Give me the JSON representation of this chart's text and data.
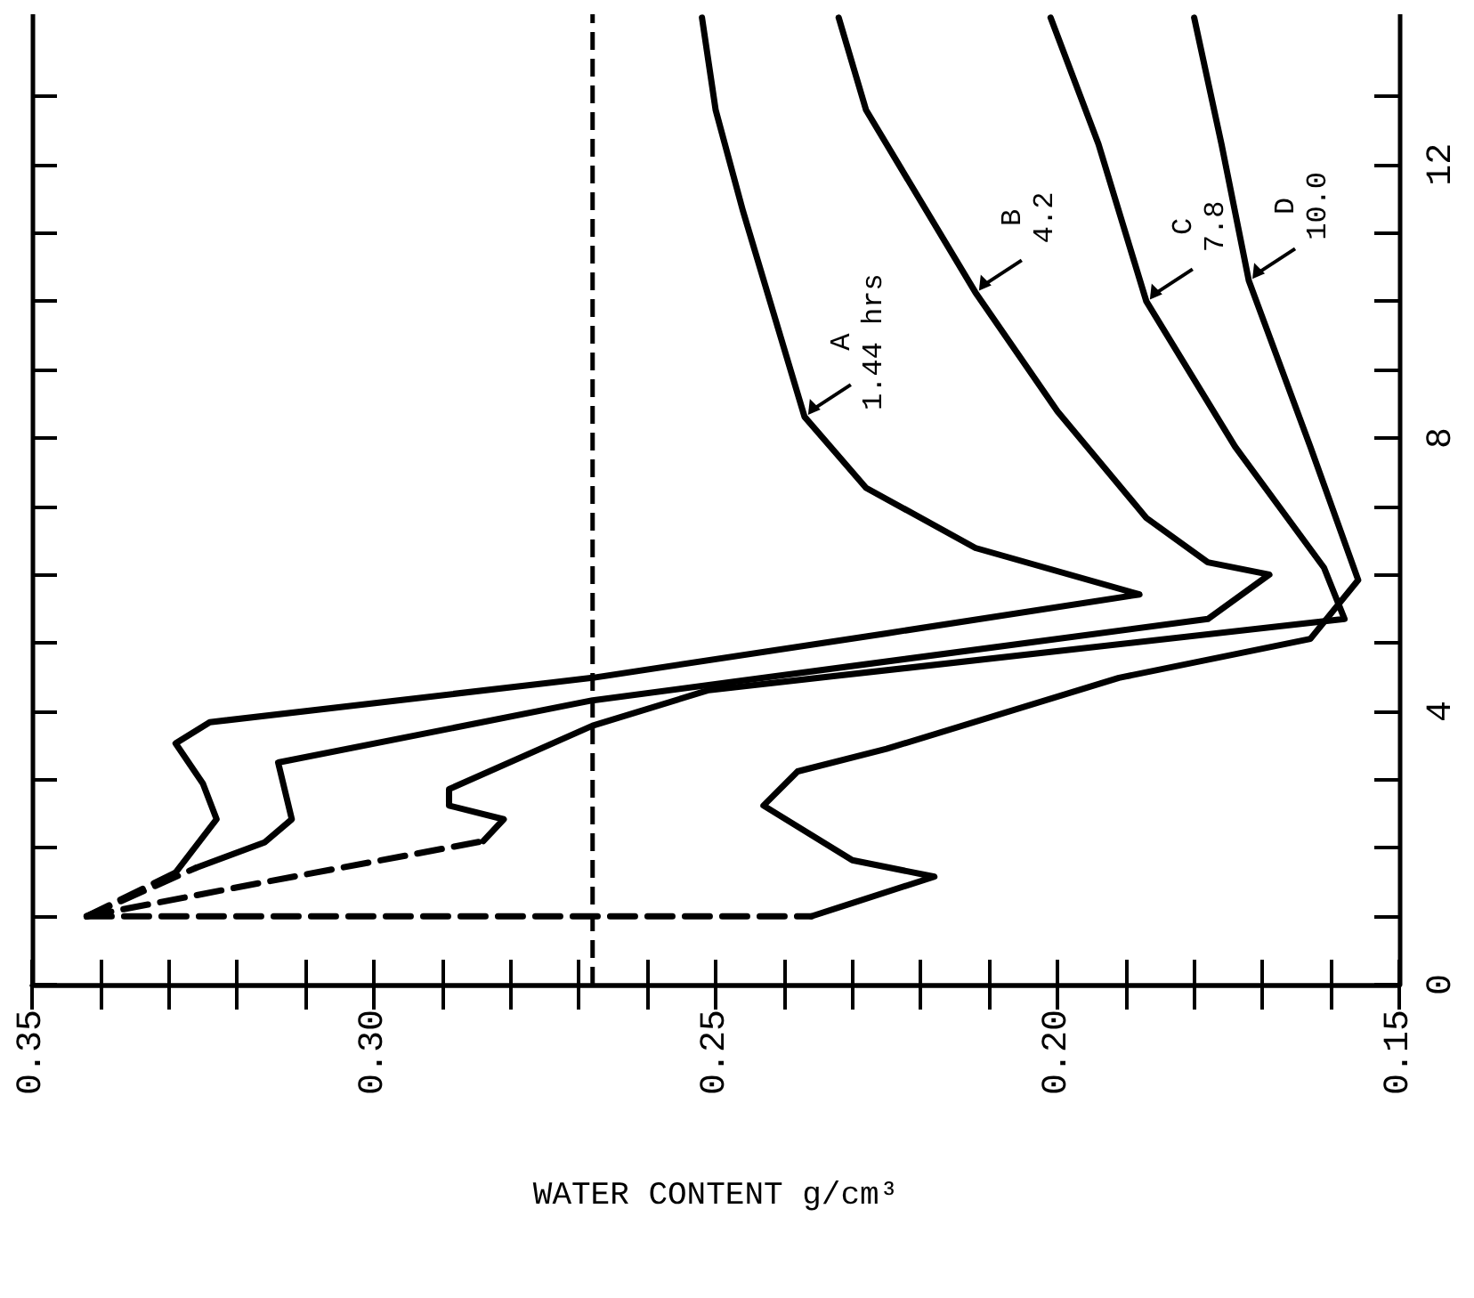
{
  "chart_data": {
    "type": "line",
    "xlabel": "WATER CONTENT g/cm³",
    "xlim": [
      0.35,
      0.15
    ],
    "xticks": [
      {
        "value": 0.35,
        "label": "0.35"
      },
      {
        "value": 0.34,
        "label": null
      },
      {
        "value": 0.33,
        "label": null
      },
      {
        "value": 0.32,
        "label": null
      },
      {
        "value": 0.31,
        "label": null
      },
      {
        "value": 0.3,
        "label": "0.30"
      },
      {
        "value": 0.29,
        "label": null
      },
      {
        "value": 0.28,
        "label": null
      },
      {
        "value": 0.27,
        "label": null
      },
      {
        "value": 0.26,
        "label": null
      },
      {
        "value": 0.25,
        "label": "0.25"
      },
      {
        "value": 0.24,
        "label": null
      },
      {
        "value": 0.23,
        "label": null
      },
      {
        "value": 0.22,
        "label": null
      },
      {
        "value": 0.21,
        "label": null
      },
      {
        "value": 0.2,
        "label": "0.20"
      },
      {
        "value": 0.19,
        "label": null
      },
      {
        "value": 0.18,
        "label": null
      },
      {
        "value": 0.17,
        "label": null
      },
      {
        "value": 0.16,
        "label": null
      },
      {
        "value": 0.15,
        "label": "0.15"
      }
    ],
    "ylim": [
      0,
      14.2
    ],
    "yticks": [
      0,
      {
        "value": 1,
        "label": null
      },
      {
        "value": 2,
        "label": null
      },
      {
        "value": 3,
        "label": null
      },
      4,
      {
        "value": 5,
        "label": null
      },
      {
        "value": 6,
        "label": null
      },
      {
        "value": 7,
        "label": null
      },
      8,
      {
        "value": 9,
        "label": null
      },
      {
        "value": 10,
        "label": null
      },
      {
        "value": 11,
        "label": null
      },
      12,
      {
        "value": 13,
        "label": null
      }
    ],
    "series": [
      {
        "color": "#000000",
        "line_style": "dashed",
        "x": [
          0.342,
          0.329
        ],
        "values": [
          1,
          1.64
        ]
      },
      {
        "color": "#000000",
        "x": [
          0.329,
          0.323,
          0.325,
          0.329,
          0.324,
          0.268,
          0.225,
          0.188,
          0.212,
          0.228,
          0.237,
          0.246,
          0.25,
          0.252
        ],
        "values": [
          1.64,
          2.42,
          2.94,
          3.53,
          3.84,
          4.49,
          5.14,
          5.71,
          6.39,
          7.27,
          8.31,
          11.32,
          12.8,
          14.15
        ]
      },
      {
        "color": "#000000",
        "line_style": "dashed",
        "x": [
          0.342,
          0.326
        ],
        "values": [
          1,
          1.71
        ]
      },
      {
        "color": "#000000",
        "x": [
          0.326,
          0.316,
          0.312,
          0.314,
          0.268,
          0.178,
          0.169,
          0.178,
          0.187,
          0.2,
          0.212,
          0.228,
          0.232
        ],
        "values": [
          1.71,
          2.08,
          2.42,
          3.25,
          4.16,
          5.35,
          6,
          6.18,
          6.83,
          8.39,
          10.13,
          12.8,
          14.15
        ]
      },
      {
        "color": "#000000",
        "line_style": "dashed",
        "x": [
          0.342,
          0.316,
          0.284
        ],
        "values": [
          1,
          1.5,
          2.1
        ]
      },
      {
        "color": "#000000",
        "x": [
          0.284,
          0.281,
          0.289,
          0.289,
          0.268,
          0.251,
          0.158,
          0.161,
          0.174,
          0.187,
          0.194,
          0.201
        ],
        "values": [
          2.1,
          2.42,
          2.62,
          2.86,
          3.79,
          4.31,
          5.35,
          6.1,
          7.87,
          10,
          12.3,
          14.15
        ]
      },
      {
        "color": "#000000",
        "line_style": "dashed",
        "x": [
          0.342,
          0.236
        ],
        "values": [
          1,
          1
        ]
      },
      {
        "color": "#000000",
        "x": [
          0.236,
          0.218,
          0.23,
          0.243,
          0.238,
          0.225,
          0.191,
          0.163,
          0.156,
          0.163,
          0.172,
          0.176,
          0.18
        ],
        "values": [
          1,
          1.58,
          1.82,
          2.62,
          3.12,
          3.45,
          4.49,
          5.06,
          5.92,
          7.87,
          10.3,
          12.3,
          14.15
        ]
      }
    ],
    "ref_lines": [
      {
        "axis": "x",
        "value": 0.268,
        "line_style": "dashed",
        "color": "#000000"
      }
    ],
    "annotations": [
      {
        "text": "A\n1.44 hrs",
        "x": 0.237,
        "y": 8.31
      },
      {
        "text": "B\n4.2",
        "x": 0.212,
        "y": 10.13
      },
      {
        "text": "C\n7.8",
        "x": 0.187,
        "y": 10
      },
      {
        "text": "D\n10.0",
        "x": 0.172,
        "y": 10.3
      }
    ]
  }
}
